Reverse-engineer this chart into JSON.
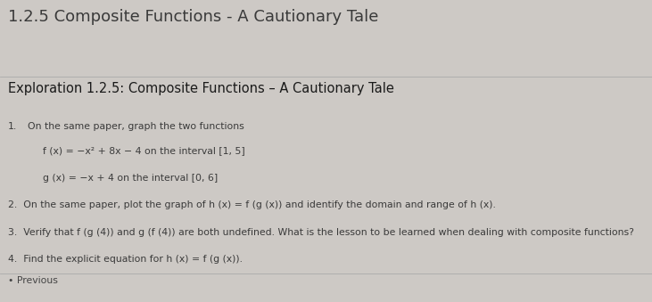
{
  "bg_color": "#cdc9c5",
  "title": "1.2.5 Composite Functions - A Cautionary Tale",
  "title_fontsize": 13,
  "title_color": "#3a3a3a",
  "subtitle": "Exploration 1.2.5: Composite Functions – A Cautionary Tale",
  "subtitle_fontsize": 10.5,
  "subtitle_color": "#1a1a1a",
  "item1_number": "1.",
  "item1_intro": "On the same paper, graph the two functions",
  "item1_f": "f (x) = −x² + 8x − 4 on the interval [1, 5]",
  "item1_g": "g (x) = −x + 4 on the interval [0, 6]",
  "item2": "2.  On the same paper, plot the graph of h (x) = f (g (x)) and identify the domain and range of h (x).",
  "item3": "3.  Verify that f (g (4)) and g (f (4)) are both undefined. What is the lesson to be learned when dealing with composite functions?",
  "item4": "4.  Find the explicit equation for h (x) = f (g (x)).",
  "footer": "• Previous",
  "body_fontsize": 7.8,
  "line_color": "#aaaaaa",
  "footer_color": "#444444"
}
